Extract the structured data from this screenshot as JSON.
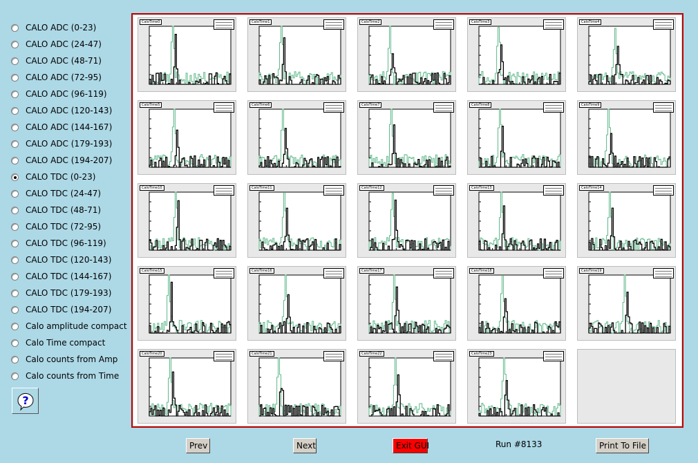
{
  "sidebar": {
    "options": [
      {
        "label": "CALO ADC (0-23)",
        "checked": false
      },
      {
        "label": "CALO ADC (24-47)",
        "checked": false
      },
      {
        "label": "CALO ADC (48-71)",
        "checked": false
      },
      {
        "label": "CALO ADC (72-95)",
        "checked": false
      },
      {
        "label": "CALO ADC (96-119)",
        "checked": false
      },
      {
        "label": "CALO ADC (120-143)",
        "checked": false
      },
      {
        "label": "CALO ADC (144-167)",
        "checked": false
      },
      {
        "label": "CALO ADC (179-193)",
        "checked": false
      },
      {
        "label": "CALO ADC (194-207)",
        "checked": false
      },
      {
        "label": "CALO TDC (0-23)",
        "checked": true
      },
      {
        "label": "CALO TDC (24-47)",
        "checked": false
      },
      {
        "label": "CALO TDC (48-71)",
        "checked": false
      },
      {
        "label": "CALO TDC (72-95)",
        "checked": false
      },
      {
        "label": "CALO TDC (96-119)",
        "checked": false
      },
      {
        "label": "CALO TDC (120-143)",
        "checked": false
      },
      {
        "label": "CALO TDC (144-167)",
        "checked": false
      },
      {
        "label": "CALO TDC (179-193)",
        "checked": false
      },
      {
        "label": "CALO TDC (194-207)",
        "checked": false
      },
      {
        "label": "Calo amplitude compact",
        "checked": false
      },
      {
        "label": "Calo Time compact",
        "checked": false
      },
      {
        "label": "Calo counts from Amp",
        "checked": false
      },
      {
        "label": "Calo counts from Time",
        "checked": false
      }
    ],
    "help_icon": "question-mark-icon"
  },
  "histograms": [
    {
      "title": "CaloTime0"
    },
    {
      "title": "CaloTime1"
    },
    {
      "title": "CaloTime2"
    },
    {
      "title": "CaloTime3"
    },
    {
      "title": "CaloTime4"
    },
    {
      "title": "CaloTime5"
    },
    {
      "title": "CaloTime6"
    },
    {
      "title": "CaloTime7"
    },
    {
      "title": "CaloTime8"
    },
    {
      "title": "CaloTime9"
    },
    {
      "title": "CaloTime10"
    },
    {
      "title": "CaloTime11"
    },
    {
      "title": "CaloTime12"
    },
    {
      "title": "CaloTime13"
    },
    {
      "title": "CaloTime14"
    },
    {
      "title": "CaloTime15"
    },
    {
      "title": "CaloTime16"
    },
    {
      "title": "CaloTime17"
    },
    {
      "title": "CaloTime18"
    },
    {
      "title": "CaloTime19"
    },
    {
      "title": "CaloTime20"
    },
    {
      "title": "CaloTime21"
    },
    {
      "title": "CaloTime22"
    },
    {
      "title": "CaloTime23"
    }
  ],
  "colors": {
    "reference_hist": "#5fb88a",
    "current_hist": "#000000",
    "frame_border": "#c00000",
    "exit_button": "#ff0000"
  },
  "buttons": {
    "prev": "Prev",
    "next": "Next",
    "exit": "Exit GUI",
    "print": "Print To File"
  },
  "run_label": "Run #8133"
}
